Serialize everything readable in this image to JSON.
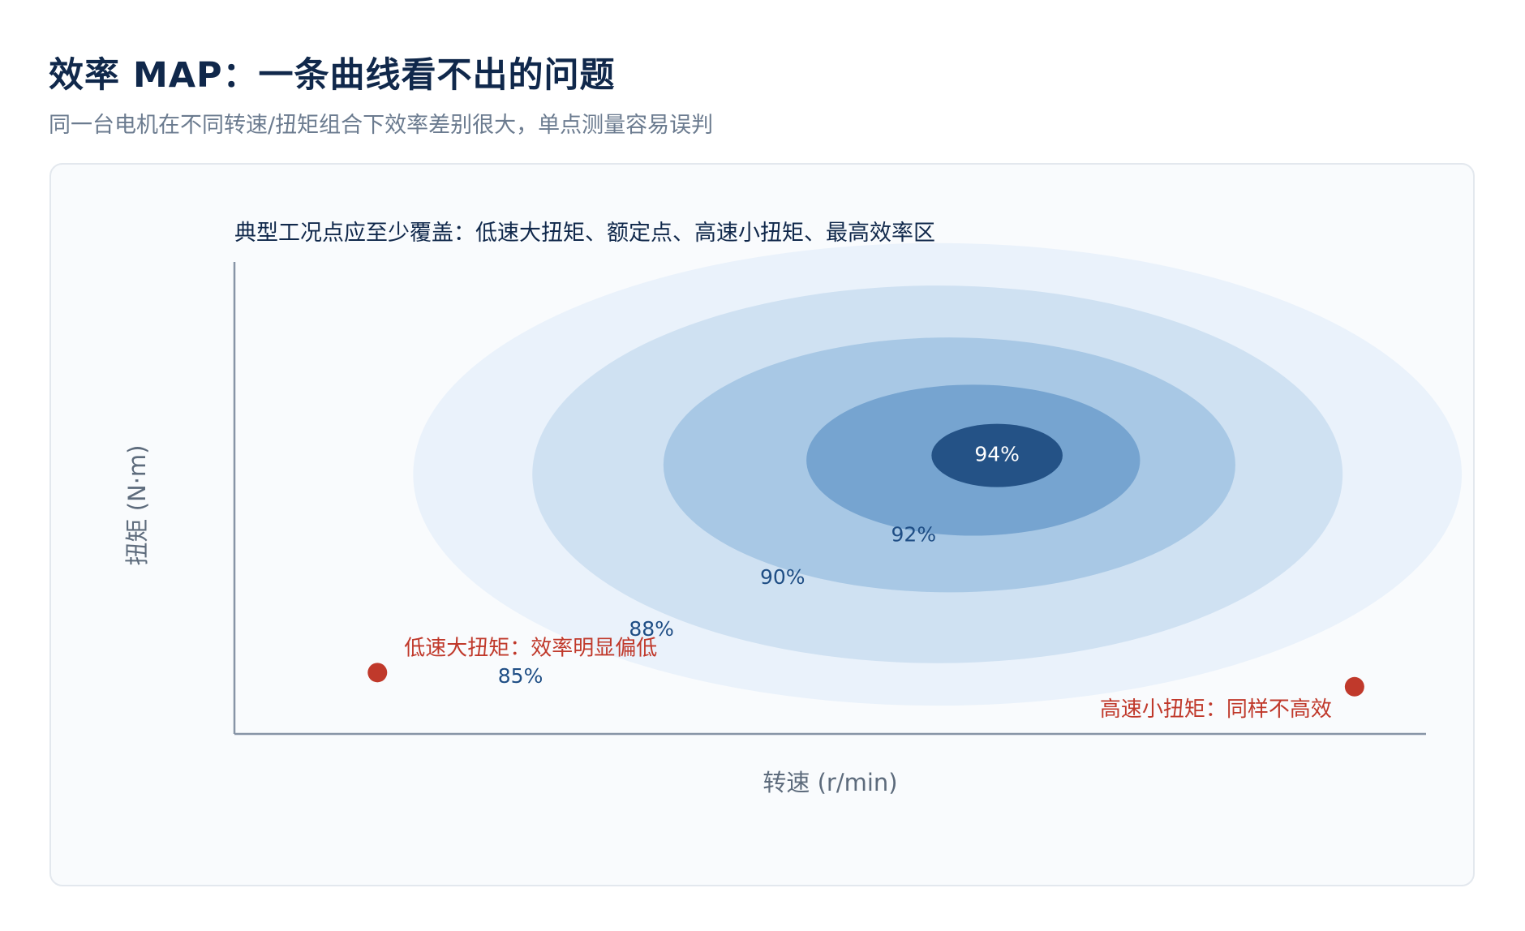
{
  "header": {
    "title": "效率 MAP：一条曲线看不出的问题",
    "subtitle": "同一台电机在不同转速/扭矩组合下效率差别很大，单点测量容易误判"
  },
  "colors": {
    "band_outer": "#eaf2fb",
    "band_2": "#cfe1f2",
    "band_3": "#a8c8e5",
    "band_4": "#76a4d0",
    "band_core": "#245286",
    "contour_label": "#1f4e85",
    "core_label": "#ffffff",
    "operating_point": "#c0392b",
    "axis": "#8794a6",
    "axis_label": "#5d6b7c",
    "note_text": "#10284b"
  },
  "chart_data": {
    "type": "heatmap",
    "title": "",
    "note": "典型工况点应至少覆盖：低速大扭矩、额定点、高速小扭矩、最高效率区",
    "xlabel": "转速 (r/min)",
    "ylabel": "扭矩 (N·m)",
    "xlim": [
      0,
      1
    ],
    "ylim": [
      0,
      1
    ],
    "grid": false,
    "legend": "none",
    "efficiency_bands": [
      {
        "label": "85%",
        "center": [
          0.59,
          0.55
        ],
        "radii": [
          0.44,
          0.49
        ],
        "label_at": [
          0.24,
          0.12
        ]
      },
      {
        "label": "88%",
        "center": [
          0.59,
          0.55
        ],
        "radii": [
          0.34,
          0.4
        ],
        "label_at": [
          0.35,
          0.22
        ]
      },
      {
        "label": "90%",
        "center": [
          0.6,
          0.57
        ],
        "radii": [
          0.24,
          0.27
        ],
        "label_at": [
          0.46,
          0.33
        ]
      },
      {
        "label": "92%",
        "center": [
          0.62,
          0.58
        ],
        "radii": [
          0.14,
          0.16
        ],
        "label_at": [
          0.57,
          0.42
        ]
      },
      {
        "label": "94%",
        "center": [
          0.64,
          0.59
        ],
        "radii": [
          0.055,
          0.067
        ],
        "label_at": [
          0.64,
          0.59
        ]
      }
    ],
    "operating_points": [
      {
        "label": "低速大扭矩：效率明显偏低",
        "x": 0.12,
        "y": 0.13,
        "label_align": "start"
      },
      {
        "label": "高速小扭矩：同样不高效",
        "x": 0.94,
        "y": 0.1,
        "label_align": "end"
      }
    ]
  }
}
